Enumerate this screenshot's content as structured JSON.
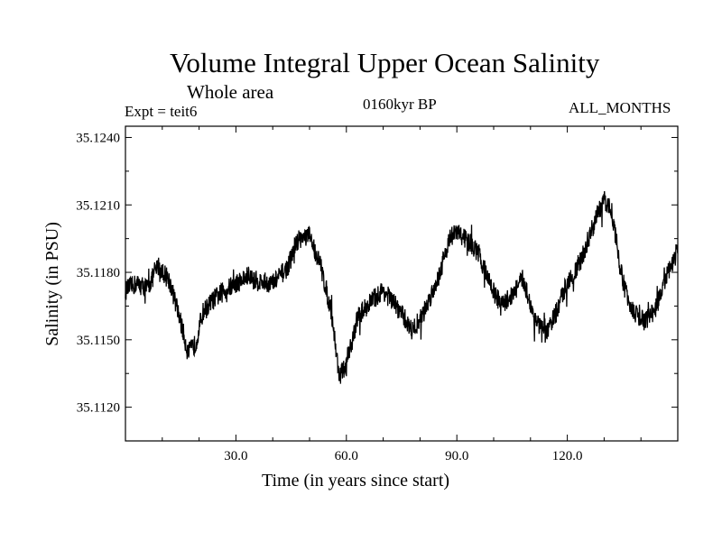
{
  "chart_data": {
    "type": "line",
    "title": "Volume Integral Upper Ocean Salinity",
    "subtitle": "Whole area",
    "experiment_label": "Expt = teit6",
    "period_label": "0160kyr BP",
    "months_label": "ALL_MONTHS",
    "xlabel": "Time (in years since start)",
    "ylabel": "Salinity (in PSU)",
    "xlim": [
      0,
      150
    ],
    "ylim": [
      35.1105,
      35.1245
    ],
    "xticks": [
      30,
      60,
      90,
      120
    ],
    "xtick_labels": [
      "30.0",
      "60.0",
      "90.0",
      "120.0"
    ],
    "yticks": [
      35.112,
      35.115,
      35.118,
      35.121,
      35.124
    ],
    "ytick_labels": [
      "35.1120",
      "35.1150",
      "35.1180",
      "35.1210",
      "35.1240"
    ],
    "grid": false,
    "series": [
      {
        "name": "salinity",
        "line_color": "#000000",
        "noise_amplitude": 0.00045,
        "x": [
          0,
          3,
          6,
          9,
          12,
          15,
          17,
          19,
          21,
          24,
          27,
          30,
          33,
          36,
          40,
          44,
          47,
          50,
          53,
          56,
          58,
          60,
          63,
          66,
          70,
          74,
          78,
          81,
          85,
          88,
          90,
          93,
          96,
          99,
          102,
          105,
          108,
          111,
          114,
          117,
          120,
          123,
          126,
          128,
          130,
          132,
          135,
          138,
          141,
          144,
          147,
          150
        ],
        "y": [
          35.1172,
          35.1175,
          35.1173,
          35.1183,
          35.1176,
          35.1158,
          35.1144,
          35.1148,
          35.1162,
          35.1168,
          35.1172,
          35.1175,
          35.1178,
          35.1176,
          35.1175,
          35.1182,
          35.1195,
          35.1196,
          35.1183,
          35.1162,
          35.1134,
          35.1138,
          35.116,
          35.1166,
          35.1172,
          35.1164,
          35.1154,
          35.1162,
          35.1178,
          35.1195,
          35.1198,
          35.1194,
          35.1188,
          35.1175,
          35.1165,
          35.117,
          35.1177,
          35.116,
          35.1152,
          35.1162,
          35.1176,
          35.1182,
          35.1196,
          35.1205,
          35.1212,
          35.1208,
          35.1176,
          35.1162,
          35.1158,
          35.1164,
          35.1178,
          35.119
        ]
      }
    ]
  }
}
